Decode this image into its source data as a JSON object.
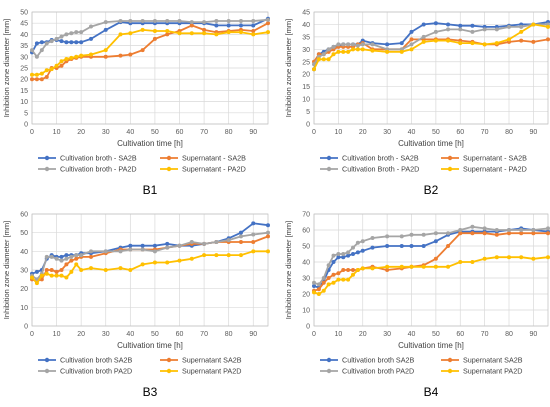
{
  "chart_data": [
    {
      "type": "line",
      "panel_label": "B1",
      "xlabel": "Cultivation time [h]",
      "ylabel": "Inhibition zone diameter [mm]",
      "xlim": [
        0,
        96
      ],
      "ylim": [
        0,
        50
      ],
      "xticks": [
        0,
        10,
        20,
        30,
        40,
        50,
        60,
        70,
        80,
        90
      ],
      "yticks": [
        0,
        5,
        10,
        15,
        20,
        25,
        30,
        35,
        40,
        45,
        50
      ],
      "grid": true,
      "legend": "bottom",
      "series": [
        {
          "name": "Cultivation broth - SA2B",
          "color": "#4472c4",
          "x": [
            0,
            2,
            4,
            6,
            8,
            10,
            12,
            14,
            16,
            18,
            20,
            24,
            30,
            36,
            40,
            45,
            50,
            55,
            60,
            65,
            70,
            75,
            80,
            85,
            90,
            96
          ],
          "y": [
            32,
            36,
            36.5,
            36.5,
            37.5,
            37.5,
            37,
            36.5,
            36.5,
            36.5,
            36.5,
            38,
            42,
            45.5,
            45,
            45,
            45,
            45,
            45,
            45,
            45,
            44,
            44,
            44,
            44,
            47
          ]
        },
        {
          "name": "Supernatant - SA2B",
          "color": "#ed7d31",
          "x": [
            0,
            2,
            4,
            6,
            8,
            10,
            12,
            14,
            16,
            18,
            20,
            24,
            30,
            36,
            40,
            45,
            50,
            55,
            60,
            65,
            70,
            75,
            80,
            85,
            90,
            96
          ],
          "y": [
            20,
            20,
            20,
            21,
            25,
            25,
            26,
            28,
            29,
            29.5,
            30,
            30,
            30,
            30.5,
            31,
            33,
            38,
            40,
            41.5,
            44,
            42,
            41,
            41.5,
            42,
            41.5,
            45
          ]
        },
        {
          "name": "Cultivation broth - PA2D",
          "color": "#a5a5a5",
          "x": [
            0,
            2,
            4,
            6,
            8,
            10,
            12,
            14,
            16,
            18,
            20,
            24,
            30,
            36,
            40,
            45,
            50,
            55,
            60,
            65,
            70,
            75,
            80,
            85,
            90,
            96
          ],
          "y": [
            33,
            30,
            33,
            36,
            37,
            38,
            39,
            40,
            40.5,
            41,
            41,
            43.5,
            45.5,
            46,
            46,
            46,
            46,
            46,
            46,
            45.5,
            45.5,
            46,
            46,
            46,
            46,
            46.5
          ]
        },
        {
          "name": "Supernatant - PA2D",
          "color": "#ffc000",
          "x": [
            0,
            2,
            4,
            6,
            8,
            10,
            12,
            14,
            16,
            18,
            20,
            24,
            30,
            36,
            40,
            45,
            50,
            55,
            60,
            65,
            70,
            75,
            80,
            85,
            90,
            96
          ],
          "y": [
            22,
            22,
            22.5,
            24,
            24.5,
            26,
            28,
            29,
            29.5,
            30,
            30.5,
            31,
            33,
            40,
            40.5,
            42,
            41.5,
            41.5,
            40.5,
            40.5,
            40.5,
            40,
            41,
            41,
            40,
            41
          ]
        }
      ]
    },
    {
      "type": "line",
      "panel_label": "B2",
      "xlabel": "Cultivation time [h]",
      "ylabel": "Inhibition zone diameter [mm]",
      "xlim": [
        0,
        96
      ],
      "ylim": [
        0,
        45
      ],
      "xticks": [
        0,
        10,
        20,
        30,
        40,
        50,
        60,
        70,
        80,
        90
      ],
      "yticks": [
        0,
        5,
        10,
        15,
        20,
        25,
        30,
        35,
        40,
        45
      ],
      "grid": true,
      "legend": "bottom",
      "series": [
        {
          "name": "Cultivation broth - SA2B",
          "color": "#4472c4",
          "x": [
            0,
            2,
            4,
            6,
            8,
            10,
            12,
            14,
            16,
            18,
            20,
            24,
            30,
            36,
            40,
            45,
            50,
            55,
            60,
            65,
            70,
            75,
            80,
            85,
            90,
            96
          ],
          "y": [
            22,
            28,
            29,
            30,
            31,
            31.5,
            32,
            32,
            32,
            32,
            33.5,
            32.5,
            32,
            32.5,
            37,
            40,
            40.5,
            40,
            39.5,
            39.5,
            39,
            39,
            39.5,
            40,
            40,
            41
          ]
        },
        {
          "name": "Supernatant - SA2B",
          "color": "#ed7d31",
          "x": [
            0,
            2,
            4,
            6,
            8,
            10,
            12,
            14,
            16,
            18,
            20,
            24,
            30,
            36,
            40,
            45,
            50,
            55,
            60,
            65,
            70,
            75,
            80,
            85,
            90,
            96
          ],
          "y": [
            25,
            28,
            28,
            29,
            30,
            31,
            31,
            31,
            31,
            32,
            32.5,
            30,
            30,
            30,
            34,
            34,
            34,
            34,
            33.5,
            33,
            32,
            32,
            33,
            33.5,
            33,
            34
          ]
        },
        {
          "name": "Cultivation Broth - PA2D",
          "color": "#a5a5a5",
          "x": [
            0,
            2,
            4,
            6,
            8,
            10,
            12,
            14,
            16,
            18,
            20,
            24,
            30,
            36,
            40,
            45,
            50,
            55,
            60,
            65,
            70,
            75,
            80,
            85,
            90,
            96
          ],
          "y": [
            24,
            27,
            28,
            30,
            31,
            32,
            32,
            32,
            32,
            31.5,
            32,
            32,
            30,
            30,
            32,
            35,
            37,
            38,
            38,
            37,
            38,
            38,
            39,
            39,
            40,
            40
          ]
        },
        {
          "name": "Supernatant - PA2D",
          "color": "#ffc000",
          "x": [
            0,
            2,
            4,
            6,
            8,
            10,
            12,
            14,
            16,
            18,
            20,
            24,
            30,
            36,
            40,
            45,
            50,
            55,
            60,
            65,
            70,
            75,
            80,
            85,
            90,
            96
          ],
          "y": [
            22,
            26,
            26,
            26,
            28,
            29,
            29,
            29,
            30,
            30,
            30,
            29.5,
            29,
            29,
            30,
            33,
            33.5,
            33.5,
            32.5,
            32.5,
            32,
            32.5,
            34,
            37,
            40,
            39
          ]
        }
      ]
    },
    {
      "type": "line",
      "panel_label": "B3",
      "xlabel": "Cultivation time [h]",
      "ylabel": "Inhibition zone diameter [mm]",
      "xlim": [
        0,
        96
      ],
      "ylim": [
        0,
        60
      ],
      "xticks": [
        0,
        10,
        20,
        30,
        40,
        50,
        60,
        70,
        80,
        90
      ],
      "yticks": [
        0,
        10,
        20,
        30,
        40,
        50,
        60
      ],
      "grid": true,
      "legend": "bottom",
      "series": [
        {
          "name": "Cultivation broth SA2B",
          "color": "#4472c4",
          "x": [
            0,
            2,
            4,
            6,
            8,
            10,
            12,
            14,
            16,
            18,
            20,
            24,
            30,
            36,
            40,
            45,
            50,
            55,
            60,
            65,
            70,
            75,
            80,
            85,
            90,
            96
          ],
          "y": [
            28,
            29,
            30,
            36,
            38,
            37,
            37,
            38,
            38,
            38,
            39,
            39,
            40,
            42,
            43,
            43,
            43,
            44,
            43,
            43,
            44,
            45,
            47,
            50,
            55,
            54
          ]
        },
        {
          "name": "Supernatant SA2B",
          "color": "#ed7d31",
          "x": [
            0,
            2,
            4,
            6,
            8,
            10,
            12,
            14,
            16,
            18,
            20,
            24,
            30,
            36,
            40,
            45,
            50,
            55,
            60,
            65,
            70,
            75,
            80,
            85,
            90,
            96
          ],
          "y": [
            25,
            24,
            25,
            30,
            30,
            29,
            30,
            33,
            35,
            36,
            37,
            37,
            39,
            41,
            41,
            41,
            41,
            42,
            43,
            44,
            44,
            45,
            45,
            45,
            45,
            48
          ]
        },
        {
          "name": "Cultivation broth PA2D",
          "color": "#a5a5a5",
          "x": [
            0,
            2,
            4,
            6,
            8,
            10,
            12,
            14,
            16,
            18,
            20,
            24,
            30,
            36,
            40,
            45,
            50,
            55,
            60,
            65,
            70,
            75,
            80,
            85,
            90,
            96
          ],
          "y": [
            27,
            25,
            28,
            37,
            37,
            36,
            35,
            36,
            37,
            38,
            38,
            40,
            40,
            40,
            41,
            41,
            40,
            42,
            43,
            45,
            44,
            45,
            46,
            48,
            49,
            50
          ]
        },
        {
          "name": "Supernatant PA2D",
          "color": "#ffc000",
          "x": [
            0,
            2,
            4,
            6,
            8,
            10,
            12,
            14,
            16,
            18,
            20,
            24,
            30,
            36,
            40,
            45,
            50,
            55,
            60,
            65,
            70,
            75,
            80,
            85,
            90,
            96
          ],
          "y": [
            26,
            23,
            27,
            28,
            27,
            27,
            27,
            26,
            29,
            33,
            30,
            31,
            30,
            31,
            30,
            33,
            34,
            34,
            35,
            36,
            38,
            38,
            38,
            38,
            40,
            40
          ]
        }
      ]
    },
    {
      "type": "line",
      "panel_label": "B4",
      "xlabel": "Cultivation time [h]",
      "ylabel": "Inhibition zone diameter [mm]",
      "xlim": [
        0,
        96
      ],
      "ylim": [
        0,
        70
      ],
      "xticks": [
        0,
        10,
        20,
        30,
        40,
        50,
        60,
        70,
        80,
        90
      ],
      "yticks": [
        0,
        10,
        20,
        30,
        40,
        50,
        60,
        70
      ],
      "grid": true,
      "legend": "bottom",
      "series": [
        {
          "name": "Cultivation broth SA2B",
          "color": "#4472c4",
          "x": [
            0,
            2,
            4,
            6,
            8,
            10,
            12,
            14,
            16,
            18,
            20,
            24,
            30,
            36,
            40,
            45,
            50,
            55,
            60,
            65,
            70,
            75,
            80,
            85,
            90,
            96
          ],
          "y": [
            25,
            24,
            28,
            35,
            40,
            43,
            43,
            44,
            45,
            46,
            47,
            49,
            50,
            50,
            50,
            50,
            53,
            57,
            59,
            59,
            59,
            59,
            60,
            61,
            60,
            59
          ]
        },
        {
          "name": "Supernatant SA2B",
          "color": "#ed7d31",
          "x": [
            0,
            2,
            4,
            6,
            8,
            10,
            12,
            14,
            16,
            18,
            20,
            24,
            30,
            36,
            40,
            45,
            50,
            55,
            60,
            65,
            70,
            75,
            80,
            85,
            90,
            96
          ],
          "y": [
            22,
            23,
            27,
            30,
            32,
            33,
            35,
            35,
            35,
            35,
            36,
            37,
            35,
            36,
            37,
            38,
            42,
            50,
            58,
            58,
            58,
            57,
            58,
            58,
            58,
            58
          ]
        },
        {
          "name": "Cultivation broth PA2D",
          "color": "#a5a5a5",
          "x": [
            0,
            2,
            4,
            6,
            8,
            10,
            12,
            14,
            16,
            18,
            20,
            24,
            30,
            36,
            40,
            45,
            50,
            55,
            60,
            65,
            70,
            75,
            80,
            85,
            90,
            96
          ],
          "y": [
            27,
            26,
            30,
            38,
            44,
            45,
            45,
            46,
            49,
            52,
            53,
            55,
            56,
            56,
            57,
            57,
            58,
            58,
            60,
            62,
            61,
            60,
            60,
            60,
            60,
            61
          ]
        },
        {
          "name": "Supernatant PA2D",
          "color": "#ffc000",
          "x": [
            0,
            2,
            4,
            6,
            8,
            10,
            12,
            14,
            16,
            18,
            20,
            24,
            30,
            36,
            40,
            45,
            50,
            55,
            60,
            65,
            70,
            75,
            80,
            85,
            90,
            96
          ],
          "y": [
            21,
            20,
            22,
            26,
            27,
            29,
            29,
            29,
            32,
            35,
            36,
            36,
            37,
            37,
            37,
            37,
            37,
            37,
            40,
            40,
            42,
            43,
            43,
            43,
            42,
            43
          ]
        }
      ]
    }
  ]
}
